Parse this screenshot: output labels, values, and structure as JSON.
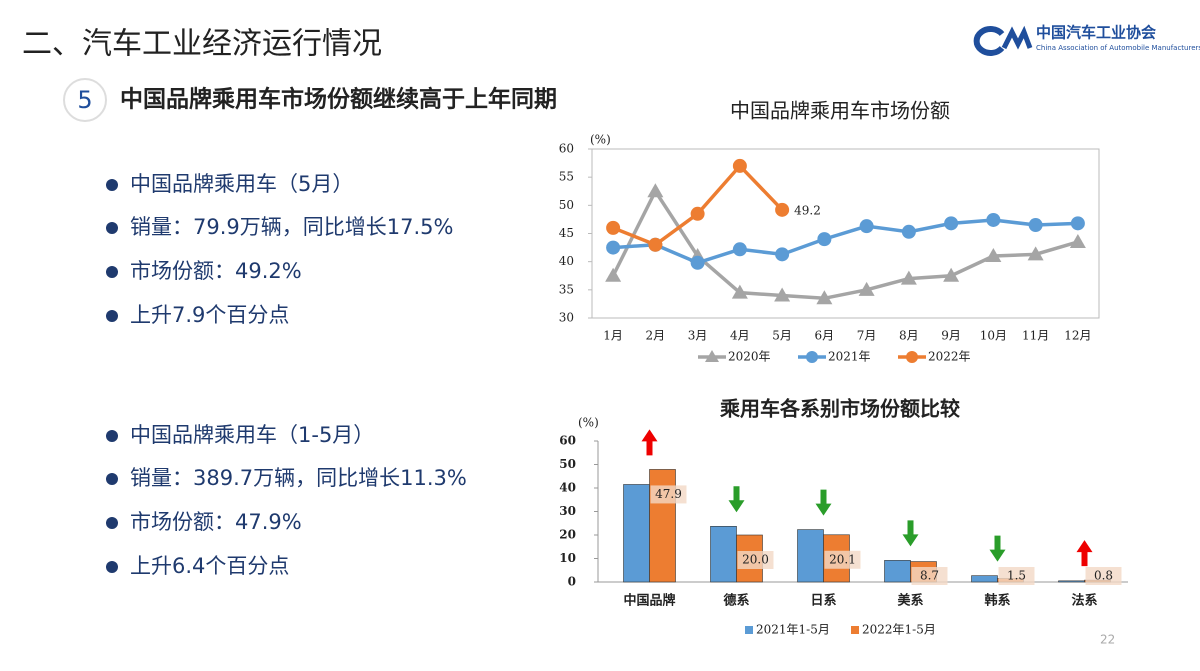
{
  "header": {
    "title": "二、汽车工业经济运行情况",
    "logo_cn": "中国汽车工业协会",
    "logo_en": "China Association of Automobile Manufacturers"
  },
  "section": {
    "number": "5",
    "title": "中国品牌乘用车市场份额继续高于上年同期"
  },
  "bullets": [
    [
      "中国品牌乘用车（5月）",
      "销量：79.9万辆，同比增长17.5%",
      "市场份额：49.2%",
      "上升7.9个百分点"
    ],
    [
      "中国品牌乘用车（1-5月）",
      "销量：389.7万辆，同比增长11.3%",
      "市场份额：47.9%",
      "上升6.4个百分点"
    ]
  ],
  "page_number": "22",
  "chart_data": [
    {
      "type": "line",
      "title": "中国品牌乘用车市场份额",
      "y_label": "(%)",
      "categories": [
        "1月",
        "2月",
        "3月",
        "4月",
        "5月",
        "6月",
        "7月",
        "8月",
        "9月",
        "10月",
        "11月",
        "12月"
      ],
      "series": [
        {
          "name": "2020年",
          "color": "#a5a5a5",
          "marker": "triangle",
          "values": [
            37.5,
            52.5,
            41,
            34.5,
            34,
            33.5,
            35,
            37,
            37.5,
            41,
            41.3,
            43.5
          ]
        },
        {
          "name": "2021年",
          "color": "#5b9bd5",
          "marker": "circle",
          "values": [
            42.5,
            43,
            39.8,
            42.2,
            41.3,
            44,
            46.3,
            45.3,
            46.8,
            47.4,
            46.5,
            46.8
          ]
        },
        {
          "name": "2022年",
          "color": "#ed7d31",
          "marker": "circle",
          "values": [
            46,
            43,
            48.5,
            57,
            49.2,
            null,
            null,
            null,
            null,
            null,
            null,
            null
          ],
          "value_labels": [
            null,
            null,
            null,
            null,
            "49.2",
            null,
            null,
            null,
            null,
            null,
            null,
            null
          ]
        }
      ],
      "ylim": [
        30,
        60
      ],
      "yticks": [
        30,
        35,
        40,
        45,
        50,
        55,
        60
      ],
      "legend": "bottom"
    },
    {
      "type": "bar",
      "title": "乘用车各系别市场份额比较",
      "y_label": "(%)",
      "categories": [
        "中国品牌",
        "德系",
        "日系",
        "美系",
        "韩系",
        "法系"
      ],
      "series": [
        {
          "name": "2021年1-5月",
          "color": "#5b9bd5",
          "values": [
            41.5,
            23.7,
            22.3,
            9.2,
            2.7,
            0.5
          ]
        },
        {
          "name": "2022年1-5月",
          "color": "#ed7d31",
          "values": [
            47.9,
            20.0,
            20.1,
            8.7,
            1.5,
            0.8
          ],
          "value_labels": [
            "47.9",
            "20.0",
            "20.1",
            "8.7",
            "1.5",
            "0.8"
          ]
        }
      ],
      "ylim": [
        0,
        60
      ],
      "yticks": [
        0,
        10,
        20,
        30,
        40,
        50,
        60
      ],
      "legend": "bottom"
    }
  ]
}
